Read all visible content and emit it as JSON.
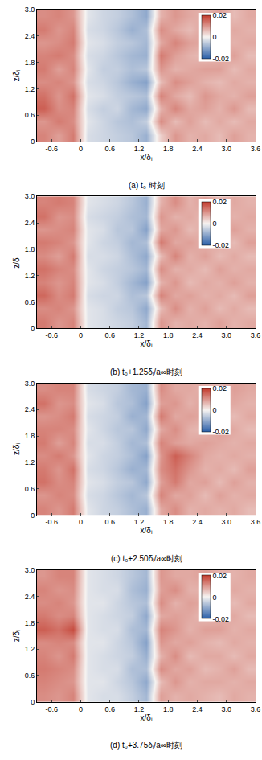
{
  "chart_data": [
    {
      "type": "heatmap",
      "title": "(a) t₀ 时刻",
      "xlabel": "x/δᵢ",
      "ylabel": "z/δᵢ",
      "xlim": [
        -0.9,
        3.6
      ],
      "xticks": [
        -0.6,
        0,
        0.6,
        1.2,
        1.8,
        2.4,
        {
          "value": 3,
          "label": "3.0"
        },
        3.6
      ],
      "ylim": [
        0,
        3
      ],
      "yticks": [
        0,
        0.6,
        1.2,
        1.8,
        2.4,
        {
          "value": 3,
          "label": "3.0"
        }
      ],
      "cells": {
        "x": [
          -0.75,
          -0.45,
          -0.15,
          0.15,
          0.45,
          0.75,
          1.05,
          1.35,
          1.65,
          1.95,
          2.25,
          2.55,
          2.85,
          3.15,
          3.45
        ],
        "y": [
          0.15,
          0.45,
          0.75,
          1.05,
          1.35,
          1.65,
          1.95,
          2.25,
          2.55,
          2.85
        ],
        "values": [
          [
            0.012,
            0.009,
            0.013,
            -0.003,
            -0.004,
            -0.005,
            -0.006,
            -0.009,
            0.004,
            0.01,
            0.007,
            0.008,
            0.006,
            0.009,
            0.007
          ],
          [
            0.01,
            0.013,
            0.011,
            -0.002,
            -0.004,
            -0.006,
            -0.007,
            -0.005,
            0.011,
            0.006,
            0.009,
            0.006,
            0.008,
            0.006,
            0.008
          ],
          [
            0.016,
            0.011,
            0.012,
            -0.003,
            -0.005,
            -0.004,
            -0.008,
            -0.01,
            0.007,
            0.012,
            0.008,
            0.009,
            0.007,
            0.01,
            0.006
          ],
          [
            0.014,
            0.01,
            0.014,
            -0.002,
            -0.003,
            -0.005,
            -0.006,
            -0.007,
            0.012,
            0.008,
            0.006,
            0.01,
            0.008,
            0.007,
            0.009
          ],
          [
            0.011,
            0.012,
            0.01,
            -0.003,
            -0.004,
            -0.006,
            -0.009,
            -0.011,
            0.006,
            0.011,
            0.009,
            0.007,
            0.006,
            0.008,
            0.007
          ],
          [
            0.013,
            0.009,
            0.012,
            -0.002,
            -0.005,
            -0.005,
            -0.007,
            -0.006,
            0.01,
            0.007,
            0.008,
            0.009,
            0.009,
            0.006,
            0.008
          ],
          [
            0.012,
            0.013,
            0.011,
            -0.003,
            -0.004,
            -0.006,
            -0.008,
            -0.009,
            0.013,
            0.009,
            0.007,
            0.006,
            0.007,
            0.009,
            0.006
          ],
          [
            0.01,
            0.011,
            0.013,
            -0.002,
            -0.003,
            -0.005,
            -0.006,
            -0.008,
            0.008,
            0.012,
            0.009,
            0.008,
            0.008,
            0.007,
            0.008
          ],
          [
            0.013,
            0.01,
            0.012,
            -0.003,
            -0.004,
            -0.006,
            -0.009,
            -0.007,
            0.011,
            0.008,
            0.006,
            0.009,
            0.006,
            0.008,
            0.007
          ],
          [
            0.011,
            0.012,
            0.01,
            -0.002,
            -0.004,
            -0.005,
            -0.007,
            -0.01,
            0.007,
            0.01,
            0.008,
            0.007,
            0.009,
            0.006,
            0.008
          ]
        ]
      },
      "colorbar": {
        "range": [
          -0.02,
          0.02
        ],
        "ticks": [
          -0.02,
          0,
          0.02
        ]
      }
    },
    {
      "type": "heatmap",
      "title": "(b) t₀+1.25δᵢ/a∞时刻",
      "xlabel": "x/δᵢ",
      "ylabel": "z/δᵢ",
      "xlim": [
        -0.9,
        3.6
      ],
      "xticks": [
        -0.6,
        0,
        0.6,
        1.2,
        1.8,
        2.4,
        {
          "value": 3,
          "label": "3.0"
        },
        3.6
      ],
      "ylim": [
        0,
        3
      ],
      "yticks": [
        0,
        0.6,
        1.2,
        1.8,
        2.4,
        {
          "value": 3,
          "label": "3.0"
        }
      ],
      "cells": {
        "x": [
          -0.75,
          -0.45,
          -0.15,
          0.15,
          0.45,
          0.75,
          1.05,
          1.35,
          1.65,
          1.95,
          2.25,
          2.55,
          2.85,
          3.15,
          3.45
        ],
        "y": [
          0.15,
          0.45,
          0.75,
          1.05,
          1.35,
          1.65,
          1.95,
          2.25,
          2.55,
          2.85
        ],
        "values": [
          [
            0.013,
            0.01,
            0.012,
            -0.002,
            -0.003,
            -0.004,
            -0.005,
            -0.008,
            0.01,
            0.007,
            0.008,
            0.007,
            0.009,
            0.007,
            0.008
          ],
          [
            0.011,
            0.012,
            0.01,
            -0.002,
            -0.003,
            -0.005,
            -0.006,
            -0.01,
            0.006,
            0.011,
            0.007,
            0.009,
            0.006,
            0.008,
            0.006
          ],
          [
            0.015,
            0.011,
            0.013,
            -0.003,
            -0.004,
            -0.004,
            -0.007,
            -0.006,
            0.012,
            0.008,
            0.009,
            0.007,
            0.008,
            0.006,
            0.009
          ],
          [
            0.012,
            0.01,
            0.012,
            -0.002,
            -0.003,
            -0.005,
            -0.008,
            -0.011,
            0.007,
            0.01,
            0.006,
            0.008,
            0.007,
            0.009,
            0.007
          ],
          [
            0.014,
            0.012,
            0.011,
            -0.002,
            -0.004,
            -0.005,
            -0.006,
            -0.008,
            0.011,
            0.007,
            0.008,
            0.006,
            0.009,
            0.007,
            0.008
          ],
          [
            0.011,
            0.009,
            0.013,
            -0.003,
            -0.003,
            -0.004,
            -0.007,
            -0.01,
            0.006,
            0.012,
            0.007,
            0.009,
            0.006,
            0.008,
            0.006
          ],
          [
            0.013,
            0.012,
            0.01,
            -0.002,
            -0.004,
            -0.005,
            -0.008,
            -0.007,
            0.013,
            0.008,
            0.009,
            0.007,
            0.008,
            0.006,
            0.009
          ],
          [
            0.01,
            0.011,
            0.012,
            -0.002,
            -0.003,
            -0.006,
            -0.006,
            -0.011,
            0.008,
            0.01,
            0.006,
            0.008,
            0.007,
            0.009,
            0.007
          ],
          [
            0.014,
            0.01,
            0.011,
            -0.003,
            -0.004,
            -0.005,
            -0.007,
            -0.008,
            0.01,
            0.007,
            0.008,
            0.006,
            0.009,
            0.007,
            0.008
          ],
          [
            0.012,
            0.013,
            0.012,
            -0.002,
            -0.003,
            -0.004,
            -0.006,
            -0.009,
            0.007,
            0.011,
            0.007,
            0.009,
            0.006,
            0.008,
            0.007
          ]
        ]
      },
      "colorbar": {
        "range": [
          -0.02,
          0.02
        ],
        "ticks": [
          -0.02,
          0,
          0.02
        ]
      }
    },
    {
      "type": "heatmap",
      "title": "(c) t₀+2.50δᵢ/a∞时刻",
      "xlabel": "x/δᵢ",
      "ylabel": "z/δᵢ",
      "xlim": [
        -0.9,
        3.6
      ],
      "xticks": [
        -0.6,
        0,
        0.6,
        1.2,
        1.8,
        2.4,
        {
          "value": 3,
          "label": "3.0"
        },
        3.6
      ],
      "ylim": [
        0,
        3
      ],
      "yticks": [
        0,
        0.6,
        1.2,
        1.8,
        2.4,
        {
          "value": 3,
          "label": "3.0"
        }
      ],
      "cells": {
        "x": [
          -0.75,
          -0.45,
          -0.15,
          0.15,
          0.45,
          0.75,
          1.05,
          1.35,
          1.65,
          1.95,
          2.25,
          2.55,
          2.85,
          3.15,
          3.45
        ],
        "y": [
          0.15,
          0.45,
          0.75,
          1.05,
          1.35,
          1.65,
          1.95,
          2.25,
          2.55,
          2.85
        ],
        "values": [
          [
            0.012,
            0.01,
            0.013,
            -0.002,
            -0.004,
            -0.005,
            -0.007,
            -0.009,
            0.008,
            0.011,
            0.007,
            0.008,
            0.007,
            0.008,
            0.006
          ],
          [
            0.01,
            0.012,
            0.011,
            -0.003,
            -0.004,
            -0.006,
            -0.008,
            -0.006,
            0.012,
            0.008,
            0.009,
            0.006,
            0.009,
            0.007,
            0.008
          ],
          [
            0.014,
            0.011,
            0.012,
            -0.002,
            -0.003,
            -0.005,
            -0.006,
            -0.01,
            0.009,
            0.013,
            0.008,
            0.009,
            0.006,
            0.009,
            0.007
          ],
          [
            0.013,
            0.01,
            0.014,
            -0.003,
            -0.004,
            -0.006,
            -0.009,
            -0.008,
            0.011,
            0.014,
            0.01,
            0.007,
            0.008,
            0.006,
            0.009
          ],
          [
            0.011,
            0.013,
            0.01,
            -0.002,
            -0.004,
            -0.005,
            -0.007,
            -0.011,
            0.01,
            0.016,
            0.012,
            0.008,
            0.007,
            0.008,
            0.007
          ],
          [
            0.013,
            0.009,
            0.012,
            -0.003,
            -0.003,
            -0.005,
            -0.008,
            -0.007,
            0.012,
            0.009,
            0.008,
            0.009,
            0.008,
            0.007,
            0.008
          ],
          [
            0.012,
            0.012,
            0.011,
            -0.002,
            -0.004,
            -0.006,
            -0.006,
            -0.01,
            0.008,
            0.011,
            0.007,
            0.006,
            0.009,
            0.008,
            0.006
          ],
          [
            0.01,
            0.011,
            0.013,
            -0.003,
            -0.004,
            -0.005,
            -0.009,
            -0.008,
            0.013,
            0.008,
            0.009,
            0.008,
            0.007,
            0.006,
            0.008
          ],
          [
            0.014,
            0.01,
            0.011,
            -0.002,
            -0.003,
            -0.006,
            -0.007,
            -0.011,
            0.009,
            0.01,
            0.007,
            0.009,
            0.008,
            0.008,
            0.007
          ],
          [
            0.011,
            0.012,
            0.012,
            -0.003,
            -0.004,
            -0.005,
            -0.008,
            -0.009,
            0.011,
            0.008,
            0.008,
            0.007,
            0.006,
            0.009,
            0.008
          ]
        ]
      },
      "colorbar": {
        "range": [
          -0.02,
          0.02
        ],
        "ticks": [
          -0.02,
          0,
          0.02
        ]
      }
    },
    {
      "type": "heatmap",
      "title": "(d) t₀+3.75δᵢ/a∞时刻",
      "xlabel": "x/δᵢ",
      "ylabel": "z/δᵢ",
      "xlim": [
        -0.9,
        3.6
      ],
      "xticks": [
        -0.6,
        0,
        0.6,
        1.2,
        1.8,
        2.4,
        {
          "value": 3,
          "label": "3.0"
        },
        3.6
      ],
      "ylim": [
        0,
        3
      ],
      "yticks": [
        0,
        0.6,
        1.2,
        1.8,
        2.4,
        {
          "value": 3,
          "label": "3.0"
        }
      ],
      "cells": {
        "x": [
          -0.75,
          -0.45,
          -0.15,
          0.15,
          0.45,
          0.75,
          1.05,
          1.35,
          1.65,
          1.95,
          2.25,
          2.55,
          2.85,
          3.15,
          3.45
        ],
        "y": [
          0.15,
          0.45,
          0.75,
          1.05,
          1.35,
          1.65,
          1.95,
          2.25,
          2.55,
          2.85
        ],
        "values": [
          [
            0.011,
            0.01,
            0.012,
            -0.002,
            -0.003,
            -0.003,
            -0.005,
            -0.008,
            0.009,
            0.007,
            0.008,
            0.007,
            0.006,
            0.008,
            0.007
          ],
          [
            0.012,
            0.011,
            0.01,
            -0.002,
            -0.002,
            -0.004,
            -0.006,
            -0.01,
            0.006,
            0.01,
            0.007,
            0.008,
            0.008,
            0.007,
            0.008
          ],
          [
            0.013,
            0.012,
            0.011,
            -0.002,
            -0.003,
            -0.003,
            -0.007,
            -0.007,
            0.011,
            0.008,
            0.009,
            0.006,
            0.007,
            0.009,
            0.006
          ],
          [
            0.012,
            0.01,
            0.013,
            -0.002,
            -0.003,
            -0.004,
            -0.005,
            -0.009,
            0.007,
            0.011,
            0.006,
            0.008,
            0.008,
            0.006,
            0.008
          ],
          [
            0.011,
            0.012,
            0.011,
            -0.002,
            -0.002,
            -0.004,
            -0.006,
            -0.011,
            0.01,
            0.008,
            0.009,
            0.007,
            0.006,
            0.008,
            0.007
          ],
          [
            0.016,
            0.014,
            0.018,
            -0.002,
            -0.003,
            -0.003,
            -0.007,
            -0.008,
            0.012,
            0.01,
            0.007,
            0.009,
            0.009,
            0.007,
            0.008
          ],
          [
            0.013,
            0.011,
            0.012,
            -0.002,
            -0.003,
            -0.004,
            -0.005,
            -0.01,
            0.008,
            0.009,
            0.008,
            0.006,
            0.007,
            0.008,
            0.006
          ],
          [
            0.011,
            0.012,
            0.01,
            -0.002,
            -0.002,
            -0.004,
            -0.006,
            -0.007,
            0.011,
            0.007,
            0.009,
            0.008,
            0.008,
            0.006,
            0.008
          ],
          [
            0.012,
            0.01,
            0.011,
            -0.002,
            -0.003,
            -0.003,
            -0.007,
            -0.009,
            0.009,
            0.011,
            0.007,
            0.007,
            0.006,
            0.008,
            0.007
          ],
          [
            0.01,
            0.012,
            0.012,
            -0.002,
            -0.003,
            -0.004,
            -0.006,
            -0.008,
            0.01,
            0.008,
            0.008,
            0.009,
            0.007,
            0.007,
            0.008
          ]
        ]
      },
      "colorbar": {
        "range": [
          -0.02,
          0.02
        ],
        "ticks": [
          -0.02,
          0,
          0.02
        ]
      }
    }
  ]
}
